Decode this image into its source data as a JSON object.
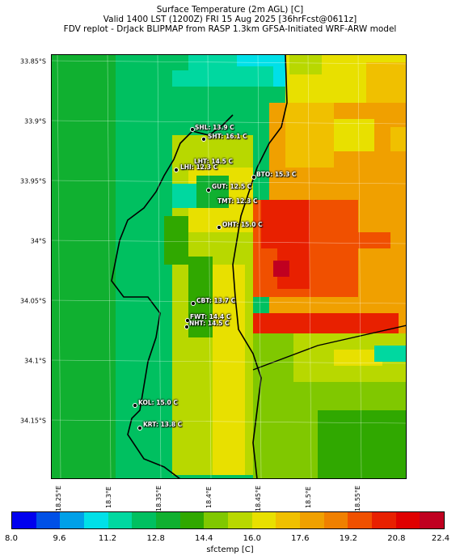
{
  "title": {
    "line1": "Surface Temperature (2m AGL) [C]",
    "line2": "Valid 1400 LST (1200Z) FRI 15 Aug 2025 [36hrFcst@0611z]",
    "line3": "FDV replot - DrJack BLIPMAP from RASP 1.3km GFSA-Initiated WRF-ARW model"
  },
  "lat_labels": [
    "33.85°S",
    "33.9°S",
    "33.95°S",
    "34°S",
    "34.05°S",
    "34.1°S",
    "34.15°S"
  ],
  "lon_labels": [
    "18.25°E",
    "18.3°E",
    "18.35°E",
    "18.4°E",
    "18.45°E",
    "18.5°E",
    "18.55°E"
  ],
  "stations": [
    {
      "label": "SHL: 13.9 C"
    },
    {
      "label": "SHT: 16.1 C"
    },
    {
      "label": "LHT: 14.5 C"
    },
    {
      "label": "LHI: 12.3 C"
    },
    {
      "label": "BTO: 15.3 C"
    },
    {
      "label": "GUT: 12.5 C"
    },
    {
      "label": "TMT: 12.3 C"
    },
    {
      "label": "OHT: 15.0 C"
    },
    {
      "label": "CBT: 13.7 C"
    },
    {
      "label": "FWT: 14.4 C"
    },
    {
      "label": "NHT: 14.5 C"
    },
    {
      "label": "KOL: 15.0 C"
    },
    {
      "label": "KRT: 13.8 C"
    }
  ],
  "colorbar": {
    "label": "sfctemp [C]",
    "ticks": [
      "8.0",
      "9.6",
      "11.2",
      "12.8",
      "14.4",
      "16.0",
      "17.6",
      "19.2",
      "20.8",
      "22.4"
    ],
    "colors": [
      "#0000ee",
      "#0050e6",
      "#00a0e8",
      "#00e0e8",
      "#00d8a0",
      "#00c060",
      "#10b030",
      "#30a800",
      "#80c800",
      "#b8d800",
      "#e8e000",
      "#f0c000",
      "#f0a000",
      "#f08000",
      "#f05000",
      "#e82000",
      "#e00000",
      "#c00020"
    ]
  }
}
